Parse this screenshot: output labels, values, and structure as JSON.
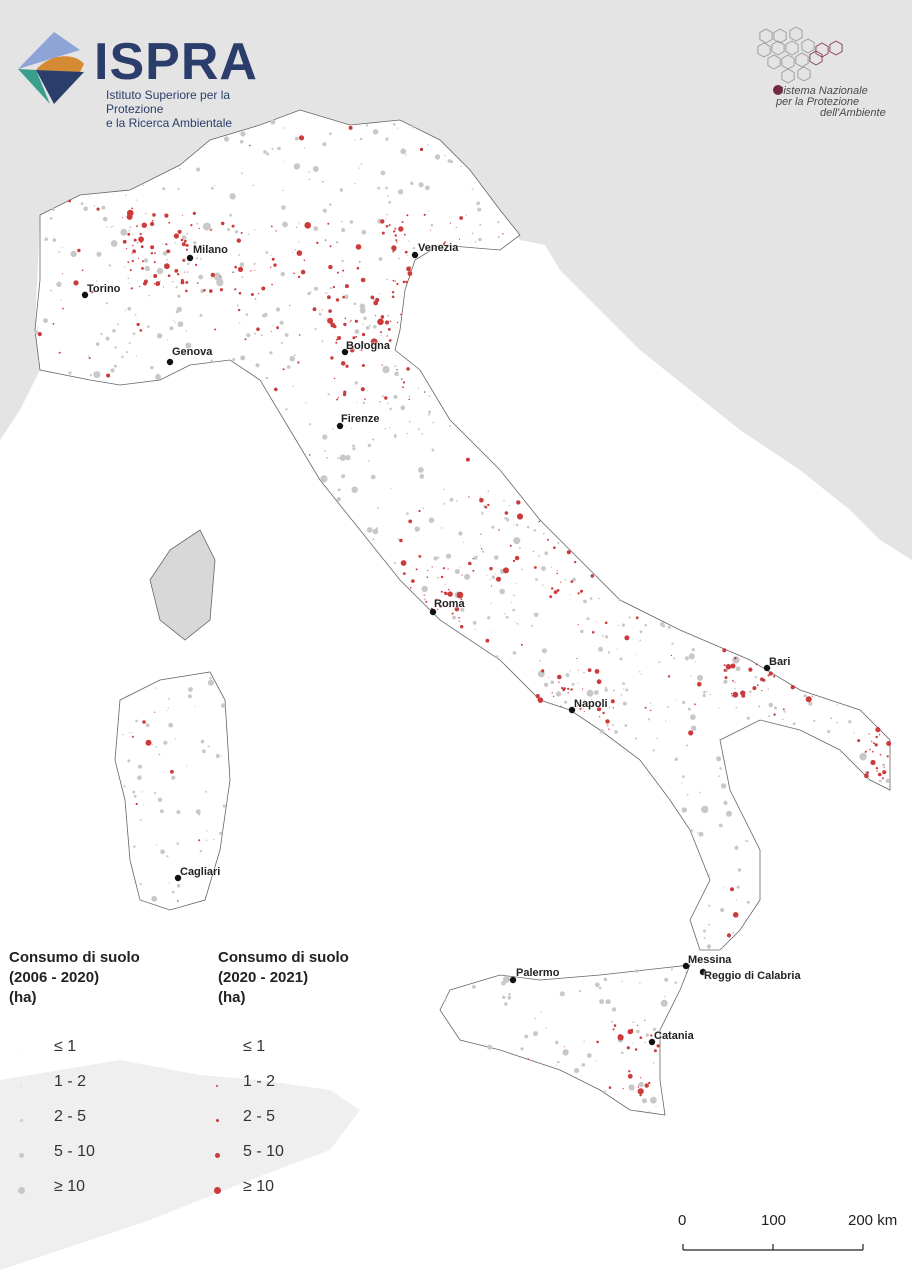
{
  "logos": {
    "ispra": {
      "name": "ISPRA",
      "subtitle_line1": "Istituto Superiore per la Protezione",
      "subtitle_line2": "e la Ricerca Ambientale"
    },
    "snpa": {
      "line1": "Sistema Nazionale",
      "line2": "per la Protezione",
      "line3": "dell'Ambiente"
    }
  },
  "cities": [
    "Milano",
    "Venezia",
    "Torino",
    "Genova",
    "Bologna",
    "Firenze",
    "Roma",
    "Napoli",
    "Bari",
    "Cagliari",
    "Palermo",
    "Messina",
    "Reggio di Calabria",
    "Catania"
  ],
  "legend": {
    "left": {
      "title1": "Consumo di suolo",
      "title2": "(2006 - 2020)",
      "title3": "(ha)",
      "color": "#c8c8c8",
      "classes": [
        "≤ 1",
        "1 - 2",
        "2 - 5",
        "5 - 10",
        "≥ 10"
      ]
    },
    "right": {
      "title1": "Consumo di suolo",
      "title2": "(2020 - 2021)",
      "title3": "(ha)",
      "color": "#cc3b3b",
      "classes": [
        "≤ 1",
        "1 - 2",
        "2 - 5",
        "5 - 10",
        "≥ 10"
      ]
    }
  },
  "scale_bar": {
    "labels": [
      "0",
      "100",
      "200 km"
    ]
  },
  "colors": {
    "foreign_land": "#e4e4e4",
    "italy_land": "#ffffff",
    "sea": "#ffffff",
    "old_consumption": "#c8c8c8",
    "new_consumption": "#cc3b3b",
    "borders": "#555555"
  }
}
